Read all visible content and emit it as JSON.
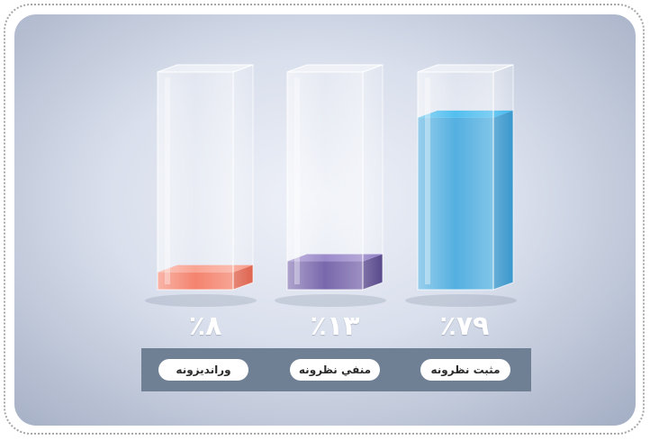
{
  "chart_data": {
    "type": "bar",
    "categories": [
      "وراندیزونه",
      "منفي نظرونه",
      "مثبت نظرونه"
    ],
    "values": [
      8,
      13,
      79
    ],
    "value_labels": [
      "٪۸",
      "٪۱۳",
      "٪۷۹"
    ],
    "ylim": [
      0,
      100
    ],
    "grid": false,
    "colors": {
      "front": [
        "#f05a3e",
        "#4c3590",
        "#1b95d6"
      ],
      "side": [
        "#d9482f",
        "#3a2877",
        "#1584c3"
      ],
      "top": [
        "#f7866f",
        "#7a63b8",
        "#19a9e9"
      ]
    }
  }
}
